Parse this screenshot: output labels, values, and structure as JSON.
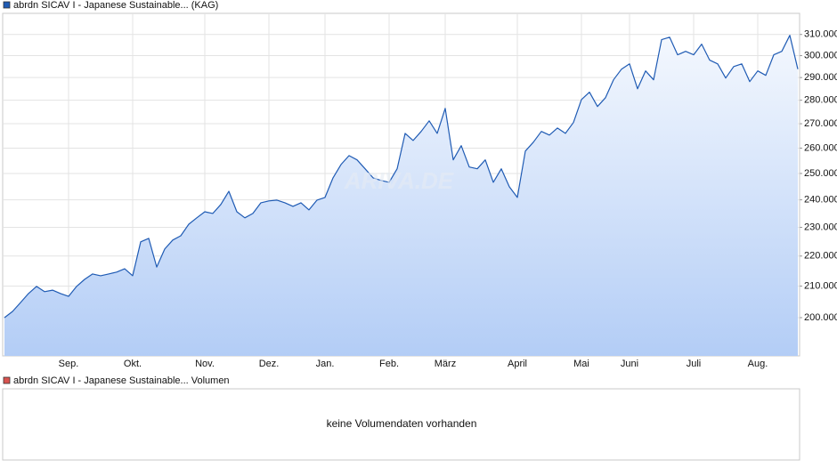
{
  "chart_data": {
    "type": "line",
    "log_scale": true,
    "grid": true,
    "series": [
      {
        "name": "abrdn SICAV I - Japanese Sustainable... (KAG)",
        "color": "#1f5bb4",
        "values": [
          200000,
          201900,
          204700,
          207600,
          209900,
          208200,
          208700,
          207600,
          206700,
          209900,
          212200,
          214000,
          213400,
          214000,
          214600,
          215700,
          213400,
          224900,
          226100,
          216300,
          222400,
          225500,
          227000,
          231100,
          233400,
          235600,
          235000,
          238300,
          243200,
          235600,
          233400,
          235000,
          238900,
          239600,
          239900,
          238900,
          237600,
          238900,
          236300,
          239900,
          240900,
          248300,
          253500,
          257000,
          255300,
          251800,
          248300,
          247300,
          246600,
          251800,
          266000,
          263100,
          266800,
          271200,
          266000,
          276500,
          255300,
          261000,
          252500,
          251800,
          255300,
          246600,
          251800,
          244900,
          240900,
          258800,
          262400,
          266800,
          265300,
          268200,
          266000,
          270500,
          280300,
          283500,
          277300,
          281100,
          289000,
          293800,
          296200,
          285000,
          293000,
          289000,
          307500,
          308700,
          300400,
          302000,
          300400,
          305400,
          297900,
          296200,
          289800,
          295000,
          296200,
          288200,
          293000,
          291000,
          300400,
          302000,
          309600,
          293800
        ]
      }
    ],
    "categories": [
      null,
      null,
      null,
      null,
      null,
      null,
      null,
      null,
      "Sep.",
      null,
      null,
      null,
      null,
      null,
      null,
      null,
      "Okt.",
      null,
      null,
      null,
      null,
      null,
      null,
      null,
      null,
      "Nov.",
      null,
      null,
      null,
      null,
      null,
      null,
      null,
      "Dez.",
      null,
      null,
      null,
      null,
      null,
      null,
      "Jan.",
      null,
      null,
      null,
      null,
      null,
      null,
      null,
      "Feb.",
      null,
      null,
      null,
      null,
      null,
      null,
      "März",
      null,
      null,
      null,
      null,
      null,
      null,
      null,
      null,
      "April",
      null,
      null,
      null,
      null,
      null,
      null,
      null,
      "Mai",
      null,
      null,
      null,
      null,
      null,
      "Juni",
      null,
      null,
      null,
      null,
      null,
      null,
      null,
      "Juli",
      null,
      null,
      null,
      null,
      null,
      null,
      null,
      "Aug.",
      null,
      null,
      null,
      null,
      null
    ],
    "ylim": [
      188500,
      320300
    ],
    "yticks": [
      {
        "value": 200000,
        "label": "200.000"
      },
      {
        "value": 210000,
        "label": "210.000"
      },
      {
        "value": 220000,
        "label": "220.000"
      },
      {
        "value": 230000,
        "label": "230.000"
      },
      {
        "value": 240000,
        "label": "240.000"
      },
      {
        "value": 250000,
        "label": "250.000"
      },
      {
        "value": 260000,
        "label": "260.000"
      },
      {
        "value": 270000,
        "label": "270.000"
      },
      {
        "value": 280000,
        "label": "280.000"
      },
      {
        "value": 290000,
        "label": "290.000"
      },
      {
        "value": 300000,
        "label": "300.000"
      },
      {
        "value": 310000,
        "label": "310.000"
      }
    ],
    "watermark": "ARIVA.DE",
    "volume_panel": {
      "legend": "abrdn SICAV I - Japanese Sustainable... Volumen",
      "color": "#d9534f",
      "message": "keine Volumendaten vorhanden"
    }
  }
}
